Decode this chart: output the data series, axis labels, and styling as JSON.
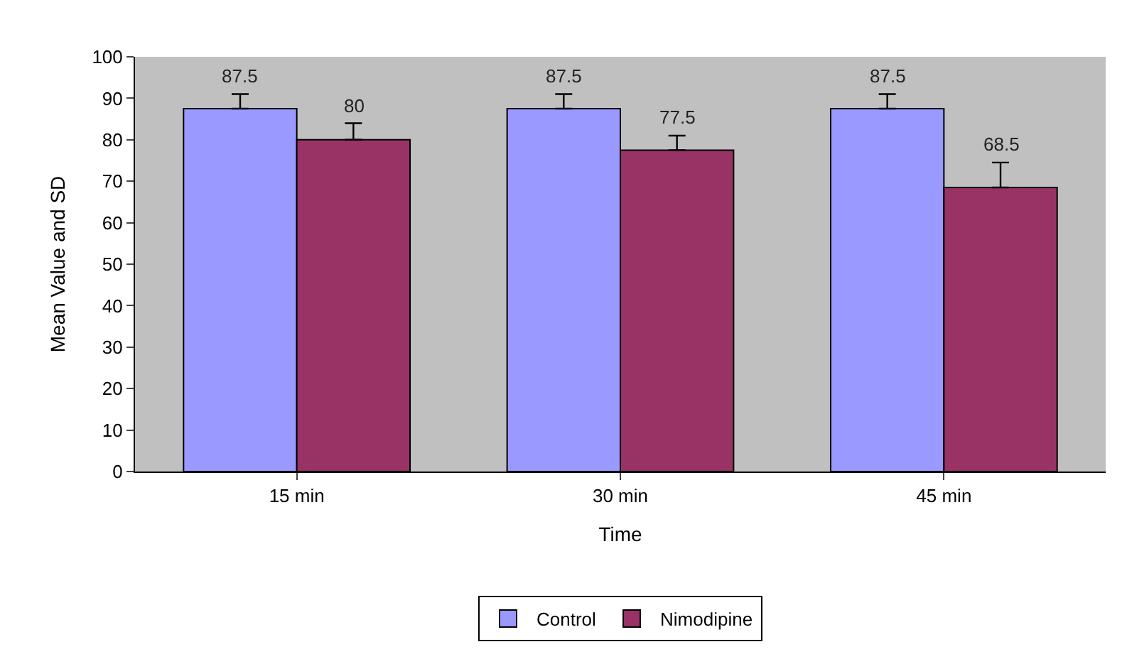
{
  "chart_data": {
    "type": "bar",
    "xlabel": "Time",
    "ylabel": "Mean Value and SD",
    "categories": [
      "15 min",
      "30 min",
      "45 min"
    ],
    "series": [
      {
        "name": "Control",
        "color": "#9999ff",
        "values": [
          87.5,
          87.5,
          87.5
        ],
        "errors": [
          3.5,
          3.5,
          3.5
        ]
      },
      {
        "name": "Nimodipine",
        "color": "#993366",
        "values": [
          80,
          77.5,
          68.5
        ],
        "errors": [
          4,
          3.5,
          6
        ]
      }
    ],
    "ylim": [
      0,
      100
    ],
    "yticks": [
      0,
      10,
      20,
      30,
      40,
      50,
      60,
      70,
      80,
      90,
      100
    ],
    "grid": false,
    "legend": "bottom",
    "data_labels": true
  }
}
